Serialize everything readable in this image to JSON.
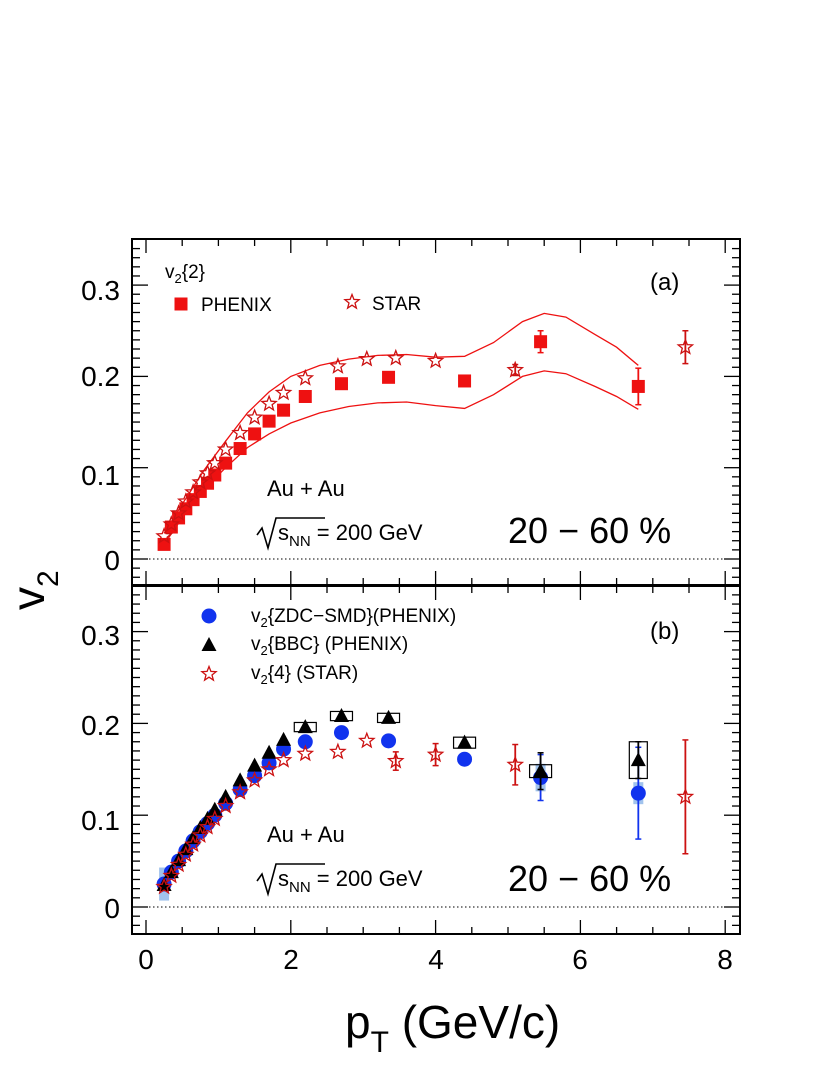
{
  "x_label": "p",
  "x_label_sub": "T",
  "x_label_unit": " (GeV/c)",
  "y_label": "v",
  "y_label_sub": "2",
  "x_ticks": [
    "0",
    "2",
    "4",
    "6",
    "8"
  ],
  "colors": {
    "phenix_red": "#ee1111",
    "star_red": "#cc1111",
    "zdc_blue": "#1133ee",
    "bbc_black": "#000000"
  },
  "chart_data": [
    {
      "type": "scatter",
      "panel_label": "(a)",
      "xlim": [
        -0.2,
        8.2
      ],
      "ylim": [
        -0.028,
        0.35
      ],
      "y_ticks": [
        "0",
        "0.1",
        "0.2",
        "0.3"
      ],
      "legend_header": "v",
      "legend_header_sub": "2",
      "legend_header_tail": "{2}",
      "annotation_system": "Au + Au",
      "annotation_energy_s": "s",
      "annotation_energy_sub": "NN",
      "annotation_energy_tail": " = 200 GeV",
      "annotation_centrality": "20 − 60 %",
      "series": [
        {
          "name": "PHENIX",
          "marker": "square",
          "points": [
            [
              0.25,
              0.016
            ],
            [
              0.35,
              0.035
            ],
            [
              0.45,
              0.045
            ],
            [
              0.55,
              0.055
            ],
            [
              0.65,
              0.065
            ],
            [
              0.75,
              0.074
            ],
            [
              0.85,
              0.083
            ],
            [
              0.95,
              0.092
            ],
            [
              1.1,
              0.105
            ],
            [
              1.3,
              0.121
            ],
            [
              1.5,
              0.137
            ],
            [
              1.7,
              0.151
            ],
            [
              1.9,
              0.163
            ],
            [
              2.2,
              0.178
            ],
            [
              2.7,
              0.192
            ],
            [
              3.35,
              0.199
            ],
            [
              4.4,
              0.195
            ],
            [
              5.45,
              0.238
            ],
            [
              6.8,
              0.189
            ]
          ],
          "errors": [
            [
              5.45,
              0.012
            ],
            [
              6.8,
              0.02
            ]
          ]
        },
        {
          "name": "STAR",
          "marker": "open-star",
          "points": [
            [
              0.25,
              0.025
            ],
            [
              0.35,
              0.038
            ],
            [
              0.45,
              0.05
            ],
            [
              0.55,
              0.063
            ],
            [
              0.65,
              0.073
            ],
            [
              0.75,
              0.084
            ],
            [
              0.85,
              0.094
            ],
            [
              0.95,
              0.105
            ],
            [
              1.1,
              0.12
            ],
            [
              1.3,
              0.138
            ],
            [
              1.5,
              0.155
            ],
            [
              1.7,
              0.17
            ],
            [
              1.9,
              0.182
            ],
            [
              2.2,
              0.198
            ],
            [
              2.65,
              0.211
            ],
            [
              3.05,
              0.219
            ],
            [
              3.45,
              0.22
            ],
            [
              4.0,
              0.217
            ],
            [
              5.1,
              0.207
            ],
            [
              7.45,
              0.232
            ]
          ],
          "errors": [
            [
              5.1,
              0.006
            ],
            [
              7.45,
              0.018
            ]
          ]
        }
      ],
      "band": {
        "upper": [
          [
            0.25,
            0.028
          ],
          [
            0.5,
            0.06
          ],
          [
            0.8,
            0.097
          ],
          [
            1.1,
            0.129
          ],
          [
            1.4,
            0.16
          ],
          [
            1.7,
            0.183
          ],
          [
            2.0,
            0.2
          ],
          [
            2.4,
            0.212
          ],
          [
            2.8,
            0.219
          ],
          [
            3.2,
            0.223
          ],
          [
            3.6,
            0.224
          ],
          [
            4.0,
            0.221
          ],
          [
            4.4,
            0.222
          ],
          [
            4.8,
            0.237
          ],
          [
            5.2,
            0.26
          ],
          [
            5.5,
            0.269
          ],
          [
            5.8,
            0.265
          ],
          [
            6.2,
            0.246
          ],
          [
            6.5,
            0.232
          ],
          [
            6.8,
            0.212
          ]
        ],
        "lower": [
          [
            0.25,
            0.016
          ],
          [
            0.5,
            0.045
          ],
          [
            0.8,
            0.076
          ],
          [
            1.1,
            0.1
          ],
          [
            1.4,
            0.122
          ],
          [
            1.7,
            0.137
          ],
          [
            2.0,
            0.149
          ],
          [
            2.4,
            0.16
          ],
          [
            2.8,
            0.167
          ],
          [
            3.2,
            0.171
          ],
          [
            3.6,
            0.172
          ],
          [
            4.0,
            0.168
          ],
          [
            4.4,
            0.165
          ],
          [
            4.8,
            0.18
          ],
          [
            5.2,
            0.2
          ],
          [
            5.5,
            0.206
          ],
          [
            5.8,
            0.203
          ],
          [
            6.2,
            0.189
          ],
          [
            6.5,
            0.178
          ],
          [
            6.8,
            0.164
          ]
        ]
      }
    },
    {
      "type": "scatter",
      "panel_label": "(b)",
      "xlim": [
        -0.2,
        8.2
      ],
      "ylim": [
        -0.028,
        0.35
      ],
      "y_ticks": [
        "0",
        "0.1",
        "0.2",
        "0.3"
      ],
      "annotation_system": "Au + Au",
      "annotation_energy_s": "s",
      "annotation_energy_sub": "NN",
      "annotation_energy_tail": " = 200 GeV",
      "annotation_centrality": "20 − 60 %",
      "series": [
        {
          "name": "v",
          "name_sub": "2",
          "name_tail": "{ZDC−SMD}(PHENIX)",
          "marker": "circle",
          "points": [
            [
              0.25,
              0.025
            ],
            [
              0.35,
              0.038
            ],
            [
              0.45,
              0.05
            ],
            [
              0.55,
              0.061
            ],
            [
              0.65,
              0.072
            ],
            [
              0.75,
              0.082
            ],
            [
              0.85,
              0.091
            ],
            [
              0.95,
              0.1
            ],
            [
              1.1,
              0.113
            ],
            [
              1.3,
              0.128
            ],
            [
              1.5,
              0.143
            ],
            [
              1.7,
              0.157
            ],
            [
              1.9,
              0.172
            ],
            [
              2.2,
              0.18
            ],
            [
              2.7,
              0.19
            ],
            [
              3.35,
              0.181
            ],
            [
              4.4,
              0.161
            ],
            [
              5.45,
              0.141
            ],
            [
              6.8,
              0.124
            ]
          ],
          "errors": [
            [
              5.45,
              0.025
            ],
            [
              6.8,
              0.05
            ]
          ],
          "sys": [
            [
              0.25,
              0.018
            ],
            [
              5.45,
              0.015
            ],
            [
              6.8,
              0.012
            ]
          ]
        },
        {
          "name": "v",
          "name_sub": "2",
          "name_tail": "{BBC} (PHENIX)",
          "marker": "triangle",
          "points": [
            [
              0.25,
              0.024
            ],
            [
              0.35,
              0.038
            ],
            [
              0.45,
              0.051
            ],
            [
              0.55,
              0.063
            ],
            [
              0.65,
              0.075
            ],
            [
              0.75,
              0.086
            ],
            [
              0.85,
              0.096
            ],
            [
              0.95,
              0.106
            ],
            [
              1.1,
              0.12
            ],
            [
              1.3,
              0.138
            ],
            [
              1.5,
              0.154
            ],
            [
              1.7,
              0.168
            ],
            [
              1.9,
              0.182
            ],
            [
              2.2,
              0.196
            ],
            [
              2.7,
              0.208
            ],
            [
              3.35,
              0.206
            ],
            [
              4.4,
              0.179
            ],
            [
              5.45,
              0.148
            ],
            [
              6.8,
              0.16
            ]
          ],
          "errors": [
            [
              5.45,
              0.02
            ],
            [
              6.8,
              0.02
            ]
          ],
          "boxes": [
            [
              2.2,
              0.005
            ],
            [
              2.7,
              0.005
            ],
            [
              3.35,
              0.005
            ],
            [
              4.4,
              0.006
            ],
            [
              5.45,
              0.007
            ],
            [
              6.8,
              0.02
            ]
          ]
        },
        {
          "name": "v",
          "name_sub": "2",
          "name_tail": "{4} (STAR)",
          "marker": "open-star",
          "points": [
            [
              0.25,
              0.022
            ],
            [
              0.35,
              0.034
            ],
            [
              0.45,
              0.046
            ],
            [
              0.55,
              0.057
            ],
            [
              0.65,
              0.068
            ],
            [
              0.75,
              0.078
            ],
            [
              0.85,
              0.087
            ],
            [
              0.95,
              0.096
            ],
            [
              1.1,
              0.11
            ],
            [
              1.3,
              0.125
            ],
            [
              1.5,
              0.138
            ],
            [
              1.7,
              0.15
            ],
            [
              1.9,
              0.16
            ],
            [
              2.2,
              0.167
            ],
            [
              2.65,
              0.169
            ],
            [
              3.05,
              0.181
            ],
            [
              3.45,
              0.159
            ],
            [
              4.0,
              0.166
            ],
            [
              5.1,
              0.155
            ],
            [
              7.45,
              0.12
            ]
          ],
          "errors": [
            [
              3.45,
              0.01
            ],
            [
              4.0,
              0.012
            ],
            [
              5.1,
              0.022
            ],
            [
              7.45,
              0.062
            ]
          ]
        }
      ]
    }
  ]
}
